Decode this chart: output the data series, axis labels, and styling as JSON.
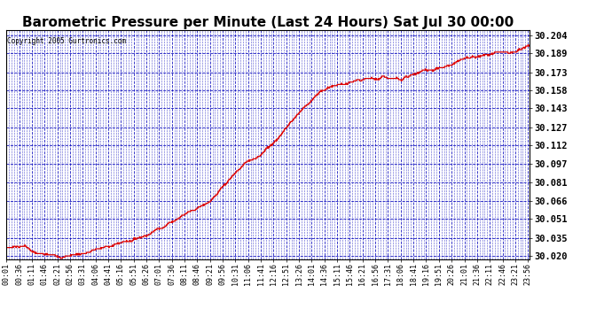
{
  "title": "Barometric Pressure per Minute (Last 24 Hours) Sat Jul 30 00:00",
  "copyright": "Copyright 2005 Gurtronics.com",
  "y_ticks": [
    30.02,
    30.035,
    30.051,
    30.066,
    30.081,
    30.097,
    30.112,
    30.127,
    30.143,
    30.158,
    30.173,
    30.189,
    30.204
  ],
  "ylim": [
    30.0175,
    30.2085
  ],
  "x_tick_labels": [
    "00:01",
    "00:36",
    "01:11",
    "01:46",
    "02:21",
    "02:56",
    "03:31",
    "04:06",
    "04:41",
    "05:16",
    "05:51",
    "06:26",
    "07:01",
    "07:36",
    "08:11",
    "08:46",
    "09:21",
    "09:56",
    "10:31",
    "11:06",
    "11:41",
    "12:16",
    "12:51",
    "13:26",
    "14:01",
    "14:36",
    "15:11",
    "15:46",
    "16:21",
    "16:56",
    "17:31",
    "18:06",
    "18:41",
    "19:16",
    "19:51",
    "20:26",
    "21:01",
    "21:36",
    "22:11",
    "22:46",
    "23:21",
    "23:56"
  ],
  "line_color": "#dd0000",
  "background_color": "#ffffff",
  "plot_bg_color": "#ffffff",
  "grid_color": "#0000bb",
  "title_color": "#000000",
  "copyright_color": "#000000",
  "title_fontsize": 11,
  "waypoints_t": [
    0,
    50,
    80,
    100,
    130,
    160,
    190,
    220,
    250,
    280,
    310,
    340,
    370,
    400,
    430,
    460,
    490,
    520,
    550,
    580,
    600,
    630,
    660,
    690,
    720,
    750,
    780,
    810,
    840,
    870,
    900,
    960,
    1020,
    1080,
    1140,
    1200,
    1260,
    1320,
    1380,
    1439
  ],
  "waypoints_p": [
    30.027,
    30.03,
    30.024,
    30.022,
    30.02,
    30.021,
    30.023,
    30.025,
    30.028,
    30.03,
    30.033,
    30.036,
    30.04,
    30.045,
    30.051,
    30.057,
    30.063,
    30.069,
    30.075,
    30.082,
    30.088,
    30.097,
    30.106,
    30.112,
    30.12,
    30.13,
    30.142,
    30.153,
    30.163,
    30.17,
    30.175,
    30.176,
    30.175,
    30.177,
    30.182,
    30.187,
    30.192,
    30.196,
    30.2,
    30.204
  ]
}
